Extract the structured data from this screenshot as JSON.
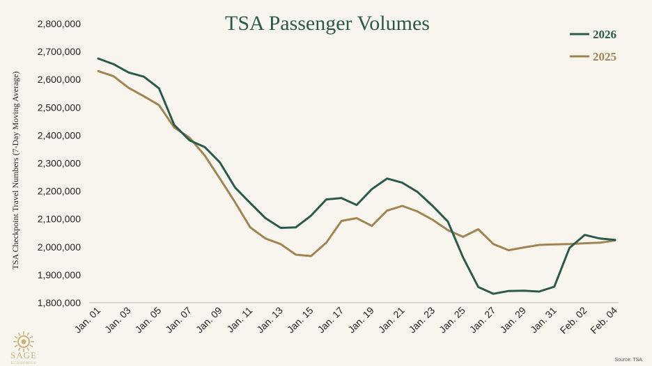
{
  "colors": {
    "background": "#f7f5ee",
    "series_2026": "#2a5a4b",
    "series_2025": "#a08552",
    "logo": "#c8b27a"
  },
  "logo": {
    "name": "SAGE",
    "tagline": "ECONOMICS"
  },
  "source": "Source: TSA",
  "chart_data": {
    "type": "line",
    "title": "TSA Passenger Volumes",
    "xlabel": "",
    "ylabel": "TSA Checkpoint Travel Numbers (7-Day Moving Average)",
    "ylim": [
      1800000,
      2800000
    ],
    "yticks": [
      1800000,
      1900000,
      2000000,
      2100000,
      2200000,
      2300000,
      2400000,
      2500000,
      2600000,
      2700000,
      2800000
    ],
    "ytick_labels": [
      "1,800,000",
      "1,900,000",
      "2,000,000",
      "2,100,000",
      "2,200,000",
      "2,300,000",
      "2,400,000",
      "2,500,000",
      "2,600,000",
      "2,700,000",
      "2,800,000"
    ],
    "x_tick_labels": [
      "Jan. 01",
      "Jan. 03",
      "Jan. 05",
      "Jan. 07",
      "Jan. 09",
      "Jan. 11",
      "Jan. 13",
      "Jan. 15",
      "Jan. 17",
      "Jan. 19",
      "Jan. 21",
      "Jan. 23",
      "Jan. 25",
      "Jan. 27",
      "Jan. 29",
      "Jan. 31",
      "Feb. 02",
      "Feb. 04"
    ],
    "x": [
      "Jan. 01",
      "Jan. 02",
      "Jan. 03",
      "Jan. 04",
      "Jan. 05",
      "Jan. 06",
      "Jan. 07",
      "Jan. 08",
      "Jan. 09",
      "Jan. 10",
      "Jan. 11",
      "Jan. 12",
      "Jan. 13",
      "Jan. 14",
      "Jan. 15",
      "Jan. 16",
      "Jan. 17",
      "Jan. 18",
      "Jan. 19",
      "Jan. 20",
      "Jan. 21",
      "Jan. 22",
      "Jan. 23",
      "Jan. 24",
      "Jan. 25",
      "Jan. 26",
      "Jan. 27",
      "Jan. 28",
      "Jan. 29",
      "Jan. 30",
      "Jan. 31",
      "Feb. 01",
      "Feb. 02",
      "Feb. 03",
      "Feb. 04"
    ],
    "legend_position": "top-right",
    "grid": false,
    "series": [
      {
        "name": "2026",
        "color": "#2a5a4b",
        "values": [
          2675000,
          2655000,
          2625000,
          2610000,
          2568000,
          2437000,
          2382000,
          2358000,
          2303000,
          2213000,
          2157000,
          2103000,
          2068000,
          2070000,
          2112000,
          2170000,
          2175000,
          2150000,
          2207000,
          2245000,
          2230000,
          2197000,
          2147000,
          2091000,
          1962000,
          1856000,
          1832000,
          1842000,
          1843000,
          1840000,
          1857000,
          1996000,
          2043000,
          2030000,
          2025000
        ]
      },
      {
        "name": "2025",
        "color": "#a08552",
        "values": [
          2630000,
          2612000,
          2570000,
          2540000,
          2508000,
          2428000,
          2392000,
          2328000,
          2245000,
          2160000,
          2070000,
          2030000,
          2010000,
          1972000,
          1967000,
          2015000,
          2093000,
          2103000,
          2075000,
          2130000,
          2147000,
          2127000,
          2097000,
          2060000,
          2036000,
          2063000,
          2010000,
          1988000,
          1998000,
          2007000,
          2009000,
          2010000,
          2013000,
          2015000,
          2023000
        ]
      }
    ]
  }
}
